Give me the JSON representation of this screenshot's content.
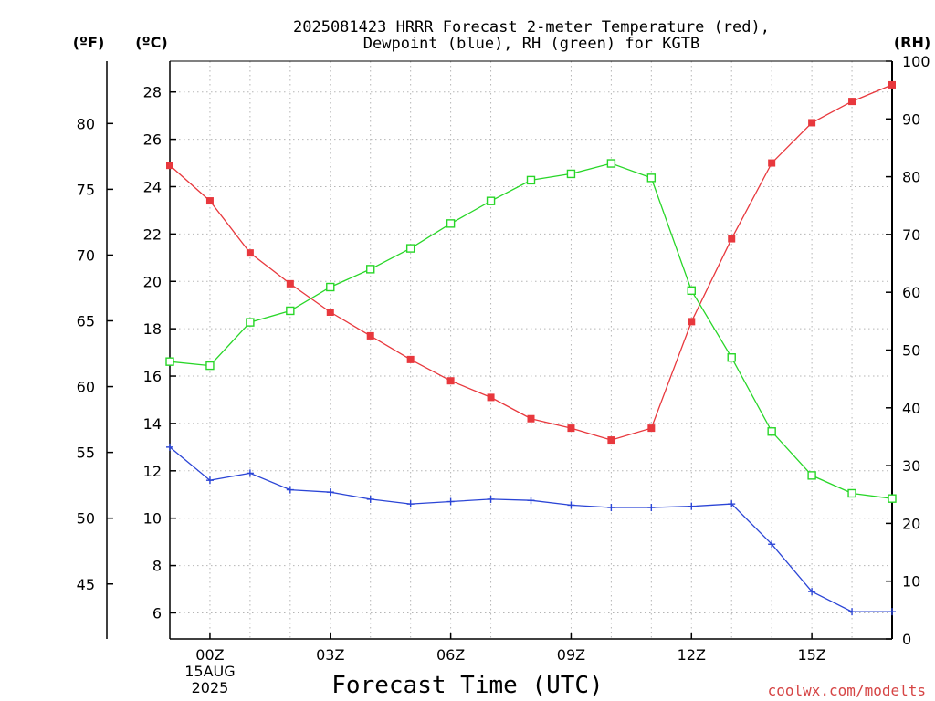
{
  "chart_data": {
    "type": "line",
    "title_lines": [
      "2025081423 HRRR Forecast 2-meter Temperature (red),",
      "Dewpoint (blue), RH (green) for KGTB"
    ],
    "xlabel": "Forecast Time (UTC)",
    "credit": "coolwx.com/modelts",
    "units": {
      "fahrenheit": "(ºF)",
      "celsius": "(ºC)",
      "rh": "(RH)"
    },
    "x_hours": [
      -1,
      0,
      1,
      2,
      3,
      4,
      5,
      6,
      7,
      8,
      9,
      10,
      11,
      12,
      13,
      14,
      15,
      16,
      17
    ],
    "x_ticks": [
      {
        "hour": 0,
        "lines": [
          "00Z",
          "15AUG",
          "2025"
        ]
      },
      {
        "hour": 3,
        "lines": [
          "03Z"
        ]
      },
      {
        "hour": 6,
        "lines": [
          "06Z"
        ]
      },
      {
        "hour": 9,
        "lines": [
          "09Z"
        ]
      },
      {
        "hour": 12,
        "lines": [
          "12Z"
        ]
      },
      {
        "hour": 15,
        "lines": [
          "15Z"
        ]
      }
    ],
    "xlim": [
      -1,
      17
    ],
    "celsius_axis": {
      "range": [
        4.9,
        29.3
      ],
      "ticks": [
        6,
        8,
        10,
        12,
        14,
        16,
        18,
        20,
        22,
        24,
        26,
        28
      ]
    },
    "fahrenheit_axis": {
      "ticks": [
        45,
        50,
        55,
        60,
        65,
        70,
        75,
        80
      ]
    },
    "rh_axis": {
      "range": [
        0,
        100
      ],
      "ticks": [
        0,
        10,
        20,
        30,
        40,
        50,
        60,
        70,
        80,
        90,
        100
      ]
    },
    "grid": true,
    "series": [
      {
        "key": "temperature",
        "color": "#e8383d",
        "marker": "filled-square",
        "axis": "celsius",
        "values": [
          24.9,
          23.4,
          21.2,
          19.9,
          18.7,
          17.7,
          16.7,
          15.8,
          15.1,
          14.2,
          13.8,
          13.3,
          13.8,
          18.3,
          21.8,
          25.0,
          26.7,
          27.6,
          28.3
        ]
      },
      {
        "key": "dewpoint",
        "color": "#2b45d6",
        "marker": "plus",
        "axis": "celsius",
        "values": [
          13.0,
          11.6,
          11.9,
          11.2,
          11.1,
          10.8,
          10.6,
          10.7,
          10.8,
          10.75,
          10.55,
          10.45,
          10.45,
          10.5,
          10.6,
          8.9,
          6.9,
          6.05,
          6.05
        ]
      },
      {
        "key": "rh",
        "color": "#28d628",
        "marker": "open-square",
        "axis": "rh",
        "values": [
          48.0,
          47.3,
          54.8,
          56.8,
          60.9,
          64.0,
          67.6,
          71.9,
          75.8,
          79.4,
          80.5,
          82.3,
          79.8,
          60.3,
          48.7,
          35.9,
          28.3,
          25.2,
          24.3
        ]
      }
    ]
  }
}
